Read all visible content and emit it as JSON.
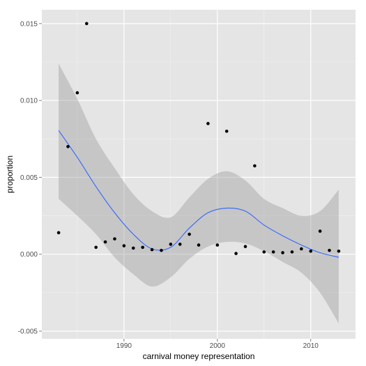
{
  "chart_data": {
    "type": "scatter",
    "title": "",
    "xlabel": "carnival money representation",
    "ylabel": "proportion",
    "xlim": [
      1981.2,
      2014.8
    ],
    "ylim": [
      -0.0055,
      0.0159
    ],
    "xticks": [
      1990,
      2000,
      2010
    ],
    "xtick_labels": [
      "1990",
      "2000",
      "2010"
    ],
    "yticks": [
      -0.005,
      0.0,
      0.005,
      0.01,
      0.015
    ],
    "ytick_labels": [
      "-0.005",
      "0.000",
      "0.005",
      "0.010",
      "0.015"
    ],
    "grid": true,
    "legend": "none",
    "colors": {
      "panel": "#e5e5e5",
      "grid_major": "#ffffff",
      "grid_minor": "#f2f2f2",
      "points": "#000000",
      "smooth_line": "#3366ff",
      "ribbon": "#999999"
    },
    "points": [
      {
        "x": 1983,
        "y": 0.0014
      },
      {
        "x": 1984,
        "y": 0.007
      },
      {
        "x": 1985,
        "y": 0.0105
      },
      {
        "x": 1986,
        "y": 0.015
      },
      {
        "x": 1987,
        "y": 0.00045
      },
      {
        "x": 1988,
        "y": 0.0008
      },
      {
        "x": 1989,
        "y": 0.001
      },
      {
        "x": 1990,
        "y": 0.00055
      },
      {
        "x": 1991,
        "y": 0.0004
      },
      {
        "x": 1992,
        "y": 0.00045
      },
      {
        "x": 1993,
        "y": 0.0003
      },
      {
        "x": 1994,
        "y": 0.00025
      },
      {
        "x": 1995,
        "y": 0.00065
      },
      {
        "x": 1996,
        "y": 0.00065
      },
      {
        "x": 1997,
        "y": 0.0013
      },
      {
        "x": 1998,
        "y": 0.0006
      },
      {
        "x": 1999,
        "y": 0.0085
      },
      {
        "x": 2000,
        "y": 0.0006
      },
      {
        "x": 2001,
        "y": 0.008
      },
      {
        "x": 2002,
        "y": 5e-05
      },
      {
        "x": 2003,
        "y": 0.0005
      },
      {
        "x": 2004,
        "y": 0.00575
      },
      {
        "x": 2005,
        "y": 0.00015
      },
      {
        "x": 2006,
        "y": 0.00015
      },
      {
        "x": 2007,
        "y": 0.0001
      },
      {
        "x": 2008,
        "y": 0.00015
      },
      {
        "x": 2009,
        "y": 0.00035
      },
      {
        "x": 2010,
        "y": 0.0002
      },
      {
        "x": 2011,
        "y": 0.0015
      },
      {
        "x": 2012,
        "y": 0.00025
      },
      {
        "x": 2013,
        "y": 0.0002
      }
    ],
    "smooth": {
      "x": [
        1983,
        1985,
        1987,
        1989,
        1991,
        1993,
        1995,
        1997,
        1999,
        2001,
        2003,
        2005,
        2007,
        2009,
        2011,
        2013
      ],
      "y": [
        0.00805,
        0.0063,
        0.0044,
        0.0027,
        0.0013,
        0.00035,
        0.00045,
        0.0017,
        0.0027,
        0.003,
        0.0028,
        0.0019,
        0.0012,
        0.0006,
        0.0001,
        -0.0002
      ],
      "lower": [
        0.0036,
        0.0025,
        0.0013,
        -0.0002,
        -0.0013,
        -0.0021,
        -0.0015,
        -0.0003,
        0.0005,
        0.0008,
        0.0007,
        0.0002,
        -0.0005,
        -0.0012,
        -0.0025,
        -0.0045
      ],
      "upper": [
        0.0124,
        0.0101,
        0.0075,
        0.0056,
        0.0039,
        0.0028,
        0.0024,
        0.0037,
        0.0049,
        0.0054,
        0.0048,
        0.0036,
        0.003,
        0.0025,
        0.0028,
        0.0042
      ]
    }
  }
}
